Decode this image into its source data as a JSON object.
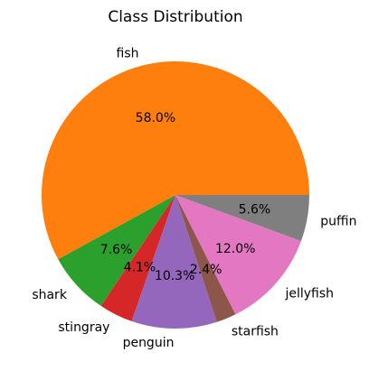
{
  "chart_data": {
    "type": "pie",
    "title": "Class Distribution",
    "slices": [
      {
        "label": "fish",
        "value": 58.0,
        "pct_label": "58.0%",
        "color": "#ff7f0e"
      },
      {
        "label": "shark",
        "value": 7.6,
        "pct_label": "7.6%",
        "color": "#2ca02c"
      },
      {
        "label": "stingray",
        "value": 4.1,
        "pct_label": "4.1%",
        "color": "#d62728"
      },
      {
        "label": "penguin",
        "value": 10.3,
        "pct_label": "10.3%",
        "color": "#9467bd"
      },
      {
        "label": "starfish",
        "value": 2.4,
        "pct_label": "2.4%",
        "color": "#8c564b"
      },
      {
        "label": "jellyfish",
        "value": 12.0,
        "pct_label": "12.0%",
        "color": "#e377c2"
      },
      {
        "label": "puffin",
        "value": 5.6,
        "pct_label": "5.6%",
        "color": "#7f7f7f"
      }
    ],
    "start_angle_deg": 0,
    "direction": "counterclockwise",
    "legend": "none"
  }
}
